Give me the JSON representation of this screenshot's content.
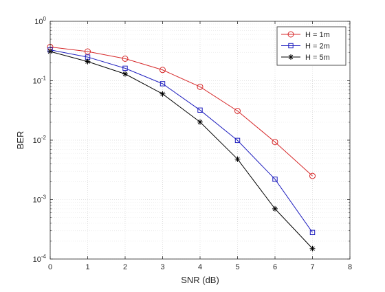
{
  "chart_data": {
    "type": "line",
    "xlabel": "SNR (dB)",
    "ylabel": "BER",
    "xlim": [
      0,
      8
    ],
    "ylim": [
      0.0001,
      1
    ],
    "yscale": "log",
    "grid": true,
    "minor_grid": true,
    "legend_position": "top-right",
    "x_ticks": [
      "0",
      "1",
      "2",
      "3",
      "4",
      "5",
      "6",
      "7",
      "8"
    ],
    "y_ticks": [
      {
        "base": "10",
        "exp": "-4"
      },
      {
        "base": "10",
        "exp": "-3"
      },
      {
        "base": "10",
        "exp": "-2"
      },
      {
        "base": "10",
        "exp": "-1"
      },
      {
        "base": "10",
        "exp": "0"
      }
    ],
    "x": [
      0,
      1,
      2,
      3,
      4,
      5,
      6,
      7
    ],
    "series": [
      {
        "name": "H = 1m",
        "color": "#d62728",
        "marker": "circle",
        "values": [
          0.37,
          0.31,
          0.235,
          0.152,
          0.079,
          0.031,
          0.0093,
          0.0025
        ]
      },
      {
        "name": "H = 2m",
        "color": "#1f1fbf",
        "marker": "square",
        "values": [
          0.33,
          0.25,
          0.162,
          0.089,
          0.032,
          0.0099,
          0.0022,
          0.00028
        ]
      },
      {
        "name": "H = 5m",
        "color": "#000000",
        "marker": "asterisk",
        "values": [
          0.31,
          0.21,
          0.13,
          0.06,
          0.0202,
          0.0048,
          0.0007,
          0.00015
        ]
      }
    ]
  }
}
